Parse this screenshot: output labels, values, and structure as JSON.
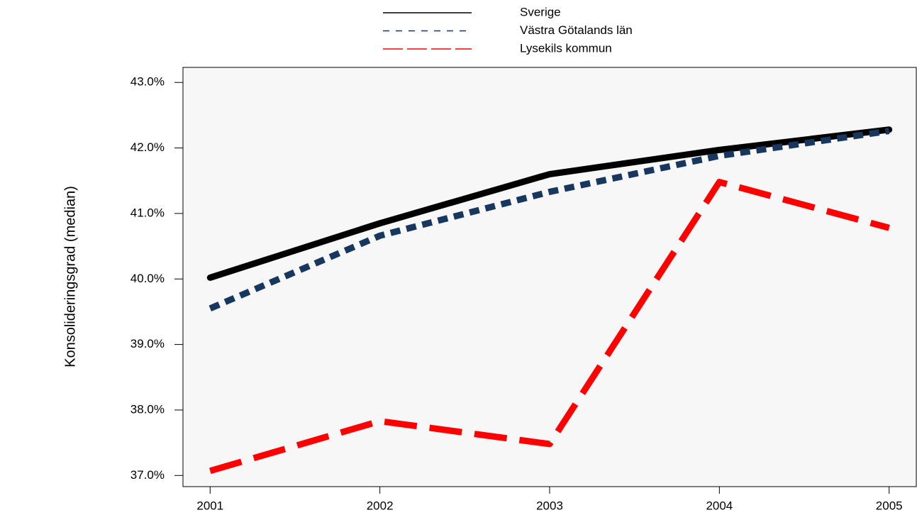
{
  "chart_data": {
    "type": "line",
    "y_label": "Konsolideringsgrad (median)",
    "x": [
      2001,
      2002,
      2003,
      2004,
      2005
    ],
    "xlim": [
      2000.84,
      2005.16
    ],
    "xticks": [
      2001,
      2002,
      2003,
      2004,
      2005
    ],
    "ylim": [
      36.83,
      43.23
    ],
    "yticks": [
      {
        "value": 37,
        "label": "37.0%"
      },
      {
        "value": 38,
        "label": "38.0%"
      },
      {
        "value": 39,
        "label": "39.0%"
      },
      {
        "value": 40,
        "label": "40.0%"
      },
      {
        "value": 41,
        "label": "41.0%"
      },
      {
        "value": 42,
        "label": "42.0%"
      },
      {
        "value": 43,
        "label": "43.0%"
      }
    ],
    "series": [
      {
        "name": "Sverige",
        "color": "#000000",
        "dash": "solid",
        "values": [
          40.02,
          40.85,
          41.6,
          41.97,
          42.28
        ]
      },
      {
        "name": "Västra Götalands län",
        "color": "#17375e",
        "dash": "dotted",
        "values": [
          39.55,
          40.66,
          41.33,
          41.88,
          42.26
        ]
      },
      {
        "name": "Lysekils kommun",
        "color": "#ff0000",
        "dash": "dashed",
        "values": [
          37.07,
          37.83,
          37.48,
          41.48,
          40.78
        ]
      }
    ]
  }
}
